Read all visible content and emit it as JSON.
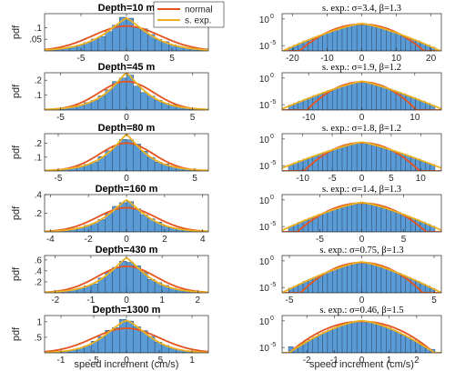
{
  "figure": {
    "xlabel": "speed increment (cm/s)",
    "left_ylabel": "pdf",
    "legend": [
      "normal",
      "s. exp."
    ],
    "colors": {
      "hist": "#5b9bd5",
      "hist_edge": "#1f3a5a",
      "normal": "#e5531e",
      "sexp": "#edb120"
    }
  },
  "chart_data": [
    {
      "type": "bar",
      "panel": "left",
      "title": "Depth=10 m",
      "xlim": [
        -9,
        9
      ],
      "ylim": [
        0,
        0.16
      ],
      "xticks": [
        -5,
        0,
        5
      ],
      "yticks": [
        0.05,
        0.1
      ],
      "sigma": 3.4,
      "beta": 1.3,
      "grid": false,
      "legend_position": "top-right"
    },
    {
      "type": "bar",
      "panel": "left",
      "title": "Depth=45 m",
      "xlim": [
        -6.2,
        6.2
      ],
      "ylim": [
        0,
        0.25
      ],
      "xticks": [
        -5,
        0,
        5
      ],
      "yticks": [
        0.1,
        0.2
      ],
      "sigma": 1.9,
      "beta": 1.2,
      "grid": false
    },
    {
      "type": "bar",
      "panel": "left",
      "title": "Depth=80 m",
      "xlim": [
        -6,
        6
      ],
      "ylim": [
        0,
        0.27
      ],
      "xticks": [
        -5,
        0,
        5
      ],
      "yticks": [
        0.1,
        0.2
      ],
      "sigma": 1.8,
      "beta": 1.2,
      "grid": false
    },
    {
      "type": "bar",
      "panel": "left",
      "title": "Depth=160 m",
      "xlim": [
        -4.3,
        4.3
      ],
      "ylim": [
        0,
        0.4
      ],
      "xticks": [
        -4,
        -2,
        0,
        2,
        4
      ],
      "yticks": [
        0.2,
        0.4
      ],
      "sigma": 1.4,
      "beta": 1.3,
      "grid": false
    },
    {
      "type": "bar",
      "panel": "left",
      "title": "Depth=430 m",
      "xlim": [
        -2.3,
        2.3
      ],
      "ylim": [
        0,
        0.68
      ],
      "xticks": [
        -2,
        -1,
        0,
        1,
        2
      ],
      "yticks": [
        0.2,
        0.4,
        0.6
      ],
      "sigma": 0.75,
      "beta": 1.3,
      "grid": false
    },
    {
      "type": "bar",
      "panel": "left",
      "title": "Depth=1300 m",
      "xlim": [
        -1.25,
        1.25
      ],
      "ylim": [
        0,
        1.2
      ],
      "xticks": [
        -1,
        -0.5,
        0,
        0.5,
        1
      ],
      "yticks": [
        0.5,
        1
      ],
      "sigma": 0.46,
      "beta": 1.5,
      "grid": false
    },
    {
      "type": "bar",
      "panel": "right",
      "title": "s. exp.: σ=3.4, β=1.3",
      "log_y": true,
      "xlim": [
        -23,
        23
      ],
      "ylim_exp": [
        -6,
        1
      ],
      "xticks": [
        -20,
        -10,
        0,
        10,
        20
      ],
      "yticks_exp": [
        0,
        -5
      ],
      "sigma": 3.4,
      "beta": 1.3
    },
    {
      "type": "bar",
      "panel": "right",
      "title": "s. exp.: σ=1.9, β=1.2",
      "log_y": true,
      "xlim": [
        -15,
        15
      ],
      "ylim_exp": [
        -6,
        1
      ],
      "xticks": [
        -10,
        0,
        10
      ],
      "yticks_exp": [
        0,
        -5
      ],
      "sigma": 1.9,
      "beta": 1.2
    },
    {
      "type": "bar",
      "panel": "right",
      "title": "s. exp.: σ=1.8, β=1.2",
      "log_y": true,
      "xlim": [
        -13.5,
        13.5
      ],
      "ylim_exp": [
        -6,
        1
      ],
      "xticks": [
        -10,
        -5,
        0,
        5,
        10
      ],
      "yticks_exp": [
        0,
        -5
      ],
      "sigma": 1.8,
      "beta": 1.2
    },
    {
      "type": "bar",
      "panel": "right",
      "title": "s. exp.: σ=1.4, β=1.3",
      "log_y": true,
      "xlim": [
        -9.5,
        9.5
      ],
      "ylim_exp": [
        -6,
        1
      ],
      "xticks": [
        -5,
        0,
        5
      ],
      "yticks_exp": [
        0,
        -5
      ],
      "sigma": 1.4,
      "beta": 1.3
    },
    {
      "type": "bar",
      "panel": "right",
      "title": "s. exp.: σ=0.75, β=1.3",
      "log_y": true,
      "xlim": [
        -5.5,
        5.5
      ],
      "ylim_exp": [
        -6,
        1
      ],
      "xticks": [
        -5,
        0,
        5
      ],
      "yticks_exp": [
        0,
        -5
      ],
      "sigma": 0.75,
      "beta": 1.3
    },
    {
      "type": "bar",
      "panel": "right",
      "title": "s. exp.: σ=0.46, β=1.5",
      "log_y": true,
      "xlim": [
        -2.9,
        2.9
      ],
      "ylim_exp": [
        -6,
        1
      ],
      "xticks": [
        -2,
        -1,
        0,
        1,
        2
      ],
      "yticks_exp": [
        0,
        -5
      ],
      "sigma": 0.46,
      "beta": 1.5
    }
  ]
}
